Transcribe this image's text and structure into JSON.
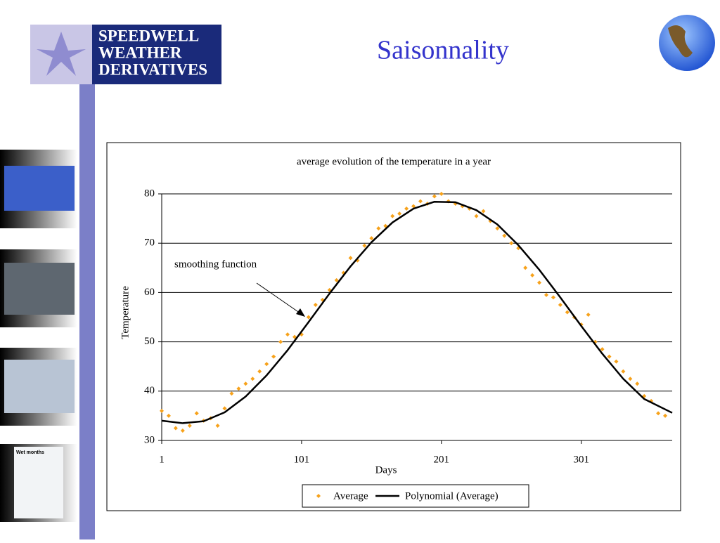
{
  "slide_title": "Saisonnality",
  "logo": [
    "SPEEDWELL",
    "WEATHER",
    "DERIVATIVES"
  ],
  "thumbnail_caption": "Wet months",
  "chart_data": {
    "type": "scatter",
    "title": "average evolution of the temperature in a year",
    "x_label": "Days",
    "y_label": "Temperature",
    "annotation": "smoothing function",
    "xlim": [
      1,
      366
    ],
    "ylim": [
      30,
      80
    ],
    "xticks": [
      1,
      101,
      201,
      301
    ],
    "yticks": [
      30,
      40,
      50,
      60,
      70,
      80
    ],
    "grid": true,
    "legend": "bottom",
    "series": [
      {
        "name": "Average",
        "type": "scatter",
        "color": "#f7a21b",
        "x": [
          1,
          6,
          11,
          16,
          21,
          26,
          31,
          36,
          41,
          46,
          51,
          56,
          61,
          66,
          71,
          76,
          81,
          86,
          91,
          96,
          101,
          106,
          111,
          116,
          121,
          126,
          131,
          136,
          141,
          146,
          151,
          156,
          161,
          166,
          171,
          176,
          181,
          186,
          191,
          196,
          201,
          206,
          211,
          216,
          221,
          226,
          231,
          236,
          241,
          246,
          251,
          256,
          261,
          266,
          271,
          276,
          281,
          286,
          291,
          296,
          301,
          306,
          311,
          316,
          321,
          326,
          331,
          336,
          341,
          346,
          351,
          356,
          361
        ],
        "values": [
          36,
          35,
          32.5,
          32,
          33,
          35.5,
          34,
          34.5,
          33,
          36.5,
          39.5,
          40.5,
          41.5,
          42.5,
          44,
          45.5,
          47,
          50,
          51.5,
          51,
          51.5,
          55,
          57.5,
          58.5,
          60.5,
          62.5,
          64,
          67,
          66.5,
          69.5,
          71,
          73,
          73.5,
          75.5,
          76,
          77,
          77.5,
          78.5,
          78,
          79.5,
          80,
          78.5,
          78,
          77.5,
          77,
          75.5,
          76.5,
          74.5,
          73,
          71.5,
          70,
          69,
          65,
          63.5,
          62,
          59.5,
          59,
          57.5,
          56,
          55,
          53.5,
          55.5,
          50,
          48.5,
          47,
          46,
          44,
          42.5,
          41.5,
          39,
          38,
          35.5,
          35
        ]
      },
      {
        "name": "Polynomial (Average)",
        "type": "line",
        "color": "#000000",
        "x": [
          1,
          16,
          31,
          46,
          61,
          76,
          91,
          106,
          121,
          136,
          151,
          166,
          181,
          196,
          211,
          226,
          241,
          256,
          271,
          286,
          301,
          316,
          331,
          346,
          366
        ],
        "values": [
          34,
          33.5,
          33.9,
          35.7,
          38.9,
          43.2,
          48.3,
          54,
          59.8,
          65.3,
          70.2,
          74.2,
          77,
          78.4,
          78.3,
          76.7,
          73.8,
          69.6,
          64.6,
          59,
          53.2,
          47.6,
          42.5,
          38.4,
          35.6
        ]
      }
    ]
  }
}
